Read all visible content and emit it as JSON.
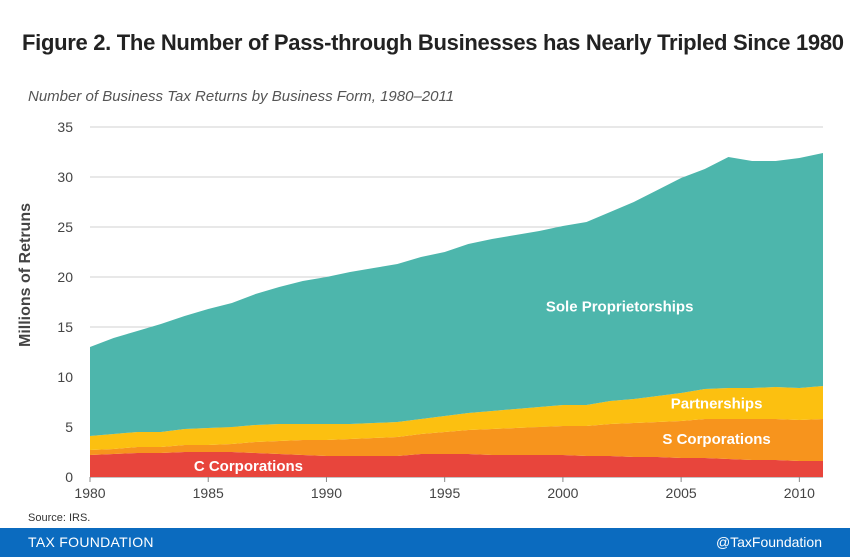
{
  "title": "Figure 2. The Number of Pass-through Businesses has Nearly Tripled Since 1980",
  "subtitle": "Number of Business Tax Returns by Business Form, 1980–2011",
  "source": "Source: IRS.",
  "footer": {
    "brand": "TAX FOUNDATION",
    "handle": "@TaxFoundation"
  },
  "colors": {
    "c_corporations": "#e8453c",
    "s_corporations": "#f7941d",
    "partnerships": "#fcc010",
    "sole_proprietorships": "#4db6ac"
  },
  "chart_data": {
    "type": "area",
    "stacked": true,
    "ylabel": "Millions of Retruns",
    "xlabel": "",
    "xlim": [
      1980,
      2011
    ],
    "ylim": [
      0,
      35
    ],
    "yticks": [
      0,
      5,
      10,
      15,
      20,
      25,
      30,
      35
    ],
    "xticks": [
      1980,
      1985,
      1990,
      1995,
      2000,
      2005,
      2010
    ],
    "grid": true,
    "x": [
      1980,
      1981,
      1982,
      1983,
      1984,
      1985,
      1986,
      1987,
      1988,
      1989,
      1990,
      1991,
      1992,
      1993,
      1994,
      1995,
      1996,
      1997,
      1998,
      1999,
      2000,
      2001,
      2002,
      2003,
      2004,
      2005,
      2006,
      2007,
      2008,
      2009,
      2010,
      2011
    ],
    "series": [
      {
        "name": "C Corporations",
        "color_key": "c_corporations",
        "values": [
          2.2,
          2.3,
          2.4,
          2.4,
          2.5,
          2.5,
          2.5,
          2.4,
          2.3,
          2.2,
          2.1,
          2.1,
          2.1,
          2.1,
          2.3,
          2.3,
          2.3,
          2.2,
          2.2,
          2.2,
          2.2,
          2.1,
          2.1,
          2.0,
          2.0,
          1.9,
          1.9,
          1.8,
          1.7,
          1.7,
          1.6,
          1.6
        ]
      },
      {
        "name": "S Corporations",
        "color_key": "s_corporations",
        "values": [
          0.5,
          0.5,
          0.6,
          0.6,
          0.7,
          0.7,
          0.8,
          1.1,
          1.3,
          1.5,
          1.6,
          1.7,
          1.8,
          1.9,
          2.0,
          2.2,
          2.4,
          2.6,
          2.7,
          2.8,
          2.9,
          3.0,
          3.2,
          3.4,
          3.5,
          3.7,
          3.9,
          4.0,
          4.1,
          4.1,
          4.1,
          4.2
        ]
      },
      {
        "name": "Partnerships",
        "color_key": "partnerships",
        "values": [
          1.4,
          1.5,
          1.5,
          1.5,
          1.6,
          1.7,
          1.7,
          1.7,
          1.7,
          1.6,
          1.6,
          1.5,
          1.5,
          1.5,
          1.5,
          1.6,
          1.7,
          1.8,
          1.9,
          2.0,
          2.1,
          2.1,
          2.3,
          2.4,
          2.6,
          2.8,
          3.0,
          3.1,
          3.1,
          3.2,
          3.2,
          3.3
        ]
      },
      {
        "name": "Sole Proprietorships",
        "color_key": "sole_proprietorships",
        "values": [
          8.9,
          9.6,
          10.1,
          10.8,
          11.3,
          11.9,
          12.4,
          13.1,
          13.7,
          14.3,
          14.7,
          15.2,
          15.5,
          15.8,
          16.2,
          16.4,
          16.9,
          17.2,
          17.4,
          17.6,
          17.9,
          18.3,
          18.9,
          19.7,
          20.6,
          21.5,
          22.0,
          23.1,
          22.7,
          22.6,
          23.0,
          23.3
        ]
      }
    ],
    "annotations": [
      {
        "text": "Sole Proprietorships",
        "series": "Sole Proprietorships"
      },
      {
        "text": "Partnerships",
        "series": "Partnerships"
      },
      {
        "text": "S Corporations",
        "series": "S Corporations"
      },
      {
        "text": "C Corporations",
        "series": "C Corporations"
      }
    ]
  }
}
